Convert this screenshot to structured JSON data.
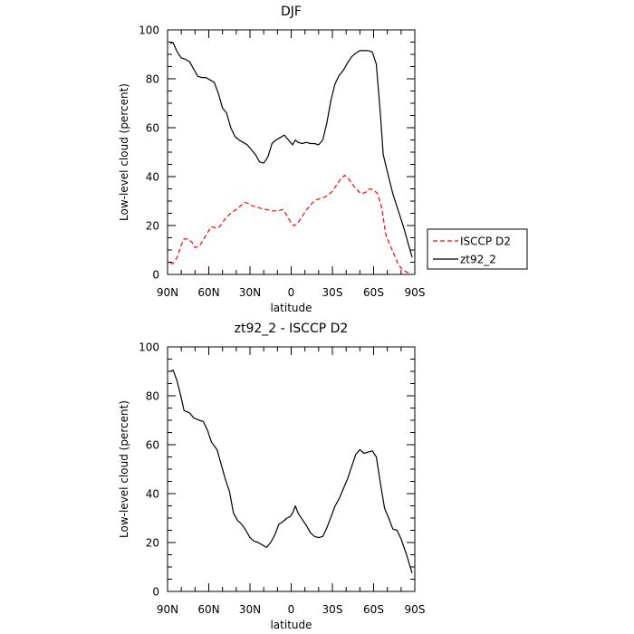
{
  "chart_data": [
    {
      "type": "line",
      "title": "DJF",
      "xlabel": "latitude",
      "ylabel": "Low-level cloud (percent)",
      "xlim": [
        90,
        -90
      ],
      "ylim": [
        0,
        100
      ],
      "x_ticks": [
        90,
        60,
        30,
        0,
        -30,
        -60,
        -90
      ],
      "x_tick_labels": [
        "90N",
        "60N",
        "30N",
        "0",
        "30S",
        "60S",
        "90S"
      ],
      "y_ticks": [
        0,
        20,
        40,
        60,
        80,
        100
      ],
      "y_tick_labels": [
        "0",
        "20",
        "40",
        "60",
        "80",
        "100"
      ],
      "legend": {
        "placement": "right",
        "entries": [
          "ISCCP D2",
          "zt92_2"
        ]
      },
      "series": [
        {
          "name": "ISCCP D2",
          "color": "#ff0000",
          "dash": "dashed",
          "x": [
            88,
            86,
            83,
            80,
            78,
            75,
            72,
            70,
            67,
            64,
            61,
            58,
            55,
            52,
            49,
            46,
            43,
            40,
            37,
            34,
            31,
            28,
            25,
            22,
            18,
            14,
            10,
            6,
            3,
            0,
            -2,
            -4,
            -6,
            -9,
            -12,
            -15,
            -18,
            -21,
            -24,
            -27,
            -30,
            -33,
            -36,
            -39,
            -42,
            -45,
            -48,
            -51,
            -54,
            -57,
            -60,
            -63,
            -66,
            -69,
            -72,
            -75,
            -78,
            -81,
            -84,
            -87
          ],
          "y": [
            4.5,
            4.5,
            7,
            12,
            14.5,
            14.5,
            13,
            11,
            11.5,
            14,
            17,
            19.5,
            19,
            19.5,
            22,
            24,
            25.5,
            26.5,
            28,
            29.5,
            29,
            28,
            27.5,
            27,
            26.5,
            26,
            26,
            26.5,
            24,
            21,
            20,
            20.5,
            22,
            24.5,
            27,
            29,
            30.5,
            31,
            31.5,
            32.5,
            34,
            36.5,
            39,
            40.5,
            39,
            36.5,
            34.5,
            33,
            33.5,
            35,
            34.5,
            33,
            27,
            16,
            12,
            8,
            4,
            2,
            1,
            0
          ]
        },
        {
          "name": "zt92_2",
          "color": "#000000",
          "dash": "solid",
          "x": [
            88,
            86,
            83,
            80,
            77,
            74,
            71,
            68,
            65,
            62,
            59,
            56,
            53,
            50,
            47,
            44,
            41,
            38,
            35,
            32,
            29,
            26,
            23,
            20,
            17,
            14,
            11,
            8,
            5,
            2,
            -1,
            -3,
            -5,
            -8,
            -11,
            -14,
            -17,
            -20,
            -23,
            -26,
            -29,
            -32,
            -35,
            -38,
            -41,
            -44,
            -47,
            -50,
            -53,
            -56,
            -59,
            -62,
            -65,
            -67,
            -70,
            -74,
            -78,
            -82,
            -86,
            -88
          ],
          "y": [
            94.5,
            94.8,
            91,
            88.5,
            88,
            87,
            84,
            81,
            80.5,
            80.5,
            79.5,
            78.5,
            74,
            68,
            66,
            60,
            56.5,
            55,
            54,
            53,
            51,
            49,
            46,
            45.5,
            48,
            53.5,
            55,
            56,
            57,
            55,
            53,
            55,
            54,
            53.5,
            54,
            53.5,
            53.5,
            53,
            55,
            62,
            71.5,
            78,
            81.5,
            83.5,
            86.5,
            89,
            90.5,
            91.5,
            91.5,
            91.5,
            91,
            86,
            65,
            49,
            42,
            33,
            26,
            19,
            11,
            7
          ]
        }
      ]
    },
    {
      "type": "line",
      "title": "zt92_2 - ISCCP D2",
      "xlabel": "latitude",
      "ylabel": "Low-level cloud (percent)",
      "xlim": [
        90,
        -90
      ],
      "ylim": [
        0,
        100
      ],
      "x_ticks": [
        90,
        60,
        30,
        0,
        -30,
        -60,
        -90
      ],
      "x_tick_labels": [
        "90N",
        "60N",
        "30N",
        "0",
        "30S",
        "60S",
        "90S"
      ],
      "y_ticks": [
        0,
        20,
        40,
        60,
        80,
        100
      ],
      "y_tick_labels": [
        "0",
        "20",
        "40",
        "60",
        "80",
        "100"
      ],
      "series": [
        {
          "color": "#000000",
          "dash": "solid",
          "x": [
            88,
            86,
            83,
            80,
            78,
            74,
            71,
            67,
            64,
            61,
            58,
            54,
            51,
            48,
            45,
            42,
            39,
            36,
            33,
            30,
            27,
            24,
            21,
            18,
            15,
            12,
            9,
            6,
            3,
            1,
            -1,
            -3,
            -5,
            -8,
            -11,
            -14,
            -17,
            -20,
            -23,
            -26,
            -29,
            -32,
            -35,
            -38,
            -41,
            -44,
            -47,
            -50,
            -53,
            -56,
            -59,
            -62,
            -65,
            -68,
            -71,
            -74,
            -77,
            -80,
            -84,
            -88
          ],
          "y": [
            90,
            90.5,
            86,
            79,
            74,
            73,
            71,
            70,
            69.5,
            66,
            61,
            58,
            52,
            46,
            41,
            32,
            29,
            27.5,
            25,
            22,
            20.5,
            20,
            19,
            18,
            20,
            23,
            27.5,
            28.5,
            30,
            30.5,
            32,
            35,
            32,
            29.5,
            27,
            24,
            22.5,
            22,
            22.5,
            26,
            30.5,
            35,
            38,
            42,
            46,
            51,
            56,
            58,
            56.5,
            57,
            57.5,
            55,
            44,
            34,
            30,
            25.5,
            25,
            21.5,
            15,
            7.5
          ]
        }
      ]
    }
  ]
}
